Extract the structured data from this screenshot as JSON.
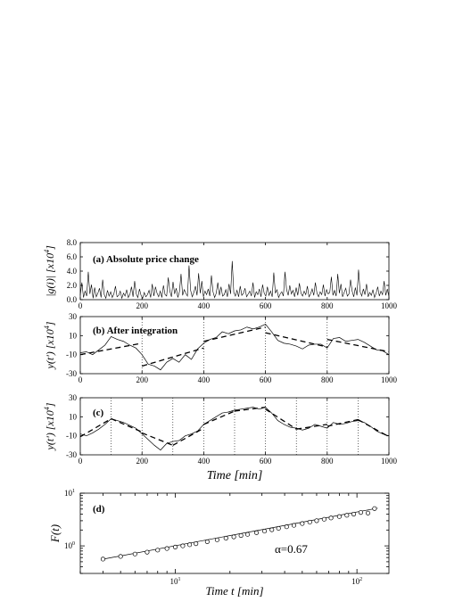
{
  "chart_data": [
    {
      "panel": "(a)",
      "type": "line",
      "title": "(a) Absolute price change",
      "ylabel_parts": [
        "|g(i)| [x10",
        "4",
        "]"
      ],
      "xlim": [
        0,
        1000
      ],
      "ylim": [
        0,
        8
      ],
      "xticks": [
        0,
        200,
        400,
        600,
        800,
        1000
      ],
      "yticks": [
        0,
        2,
        4,
        6,
        8
      ],
      "ytick_labels": [
        "0.0",
        "2.0",
        "4.0",
        "6.0",
        "8.0"
      ],
      "series": [
        {
          "values": [
            0.6,
            2.4,
            0.3,
            1.2,
            0.5,
            3.9,
            0.8,
            2.1,
            0.2,
            1.7,
            0.4,
            0.9,
            1.6,
            0.3,
            2.8,
            0.7,
            0.2,
            1.3,
            0.5,
            1.1,
            0.3,
            0.8,
            1.9,
            0.4,
            0.6,
            1.2,
            0.2,
            0.9,
            0.5,
            1.4,
            0.3,
            0.7,
            1.8,
            0.4,
            2.6,
            0.8,
            0.3,
            1.5,
            0.6,
            0.2,
            1.0,
            0.4,
            0.7,
            1.3,
            0.3,
            2.2,
            0.5,
            1.8,
            0.9,
            0.4,
            1.2,
            0.3,
            2.0,
            0.7,
            0.5,
            3.1,
            1.2,
            0.4,
            2.5,
            0.8,
            1.6,
            0.3,
            1.1,
            3.6,
            0.6,
            1.4,
            0.9,
            0.5,
            4.8,
            1.3,
            0.4,
            1.0,
            1.9,
            0.6,
            3.7,
            0.9,
            2.6,
            0.4,
            1.2,
            0.7,
            1.5,
            0.5,
            3.4,
            1.1,
            0.3,
            0.9,
            2.4,
            0.6,
            1.8,
            0.5,
            0.7,
            1.4,
            0.4,
            2.2,
            0.8,
            5.4,
            1.0,
            0.5,
            1.3,
            0.4,
            1.9,
            0.6,
            0.9,
            1.6,
            0.4,
            0.8,
            1.2,
            0.5,
            2.4,
            0.3,
            1.1,
            0.7,
            1.5,
            0.4,
            2.1,
            0.9,
            0.5,
            1.8,
            0.6,
            1.2,
            0.4,
            3.8,
            0.9,
            1.4,
            0.3,
            0.8,
            1.1,
            0.5,
            3.9,
            1.4,
            0.6,
            2.0,
            0.8,
            1.3,
            0.4,
            1.7,
            0.6,
            2.3,
            0.9,
            0.5,
            1.2,
            0.7,
            1.9,
            0.4,
            0.8,
            1.5,
            0.6,
            2.4,
            0.9,
            0.4,
            1.1,
            0.7,
            2.1,
            0.5,
            1.4,
            0.8,
            1.0,
            3.2,
            0.6,
            1.3,
            0.5,
            3.6,
            0.9,
            2.2,
            0.4,
            1.0,
            1.6,
            0.5,
            0.8,
            2.8,
            1.2,
            0.4,
            1.7,
            0.6,
            4.2,
            1.1,
            0.5,
            1.5,
            0.7,
            2.2,
            0.4,
            1.0,
            0.6,
            1.4,
            0.3,
            0.9,
            1.8,
            0.5,
            1.2,
            0.7,
            2.6,
            0.6,
            1.5,
            0.4
          ],
          "color": "#000000"
        }
      ]
    },
    {
      "panel": "(b)",
      "type": "line",
      "title": "(b) After integration",
      "ylabel_parts": [
        "y(t') [x10",
        "4",
        "]"
      ],
      "xlim": [
        0,
        1000
      ],
      "ylim": [
        -30,
        30
      ],
      "xticks": [
        0,
        200,
        400,
        600,
        800,
        1000
      ],
      "yticks": [
        -30,
        -10,
        10,
        30
      ],
      "vlines": [
        200,
        400,
        600,
        800
      ],
      "series": [
        {
          "name": "integrated",
          "x": [
            0,
            20,
            40,
            60,
            80,
            100,
            120,
            140,
            160,
            180,
            200,
            220,
            240,
            260,
            280,
            300,
            320,
            340,
            360,
            380,
            400,
            420,
            440,
            460,
            480,
            500,
            520,
            540,
            560,
            580,
            600,
            620,
            640,
            660,
            680,
            700,
            720,
            740,
            760,
            780,
            800,
            820,
            840,
            860,
            880,
            900,
            920,
            940,
            960,
            980,
            1000
          ],
          "values": [
            -8,
            -7,
            -10,
            -5,
            0,
            9,
            6,
            4,
            0,
            -3,
            -10,
            -20,
            -22,
            -26,
            -18,
            -14,
            -18,
            -10,
            -15,
            -4,
            2,
            6,
            8,
            14,
            12,
            15,
            16,
            19,
            17,
            19,
            22,
            14,
            5,
            2,
            1,
            -1,
            -4,
            0,
            1,
            1,
            -3,
            7,
            8,
            4,
            5,
            6,
            3,
            -1,
            -5,
            -6,
            -10
          ]
        },
        {
          "name": "fit",
          "segments": [
            {
              "x": [
                0,
                200
              ],
              "y": [
                -10,
                2
              ]
            },
            {
              "x": [
                200,
                400
              ],
              "y": [
                -22,
                -3
              ]
            },
            {
              "x": [
                400,
                600
              ],
              "y": [
                4,
                19
              ]
            },
            {
              "x": [
                600,
                800
              ],
              "y": [
                13,
                -2
              ]
            },
            {
              "x": [
                800,
                1000
              ],
              "y": [
                6,
                -7
              ]
            }
          ]
        }
      ]
    },
    {
      "panel": "(c)",
      "type": "line",
      "title": "(c)",
      "xlabel": "Time [min]",
      "ylabel_parts": [
        "y(t') [x10",
        "4",
        "]"
      ],
      "xlim": [
        0,
        1000
      ],
      "ylim": [
        -30,
        30
      ],
      "xticks": [
        0,
        200,
        400,
        600,
        800,
        1000
      ],
      "yticks": [
        -30,
        -10,
        10,
        30
      ],
      "vlines": [
        100,
        200,
        300,
        400,
        500,
        600,
        700,
        800,
        900
      ],
      "series": [
        {
          "name": "integrated",
          "x": [
            0,
            20,
            40,
            60,
            80,
            100,
            120,
            140,
            160,
            180,
            200,
            220,
            240,
            260,
            280,
            300,
            320,
            340,
            360,
            380,
            400,
            420,
            440,
            460,
            480,
            500,
            520,
            540,
            560,
            580,
            600,
            620,
            640,
            660,
            680,
            700,
            720,
            740,
            760,
            780,
            800,
            820,
            840,
            860,
            880,
            900,
            920,
            940,
            960,
            980,
            1000
          ],
          "values": [
            -8,
            -10,
            -7,
            -3,
            2,
            8,
            6,
            4,
            1,
            -2,
            -8,
            -14,
            -20,
            -25,
            -18,
            -16,
            -15,
            -10,
            -8,
            -5,
            2,
            6,
            10,
            14,
            15,
            17,
            18,
            19,
            20,
            18,
            20,
            14,
            6,
            2,
            -1,
            -2,
            -4,
            -2,
            2,
            0,
            -2,
            4,
            2,
            3,
            5,
            6,
            4,
            0,
            -5,
            -8,
            -10
          ]
        },
        {
          "name": "fit",
          "segments": [
            {
              "x": [
                0,
                100
              ],
              "y": [
                -11,
                8
              ]
            },
            {
              "x": [
                100,
                200
              ],
              "y": [
                8,
                -6
              ]
            },
            {
              "x": [
                200,
                300
              ],
              "y": [
                -7,
                -20
              ]
            },
            {
              "x": [
                300,
                400
              ],
              "y": [
                -20,
                -2
              ]
            },
            {
              "x": [
                400,
                500
              ],
              "y": [
                2,
                16
              ]
            },
            {
              "x": [
                500,
                600
              ],
              "y": [
                16,
                20
              ]
            },
            {
              "x": [
                600,
                700
              ],
              "y": [
                18,
                -3
              ]
            },
            {
              "x": [
                700,
                800
              ],
              "y": [
                -3,
                2
              ]
            },
            {
              "x": [
                800,
                900
              ],
              "y": [
                0,
                7
              ]
            },
            {
              "x": [
                900,
                1000
              ],
              "y": [
                7,
                -11
              ]
            }
          ]
        }
      ]
    },
    {
      "panel": "(d)",
      "type": "scatter",
      "title": "(d)",
      "xlabel": "Time t [min]",
      "ylabel": "F(t)",
      "xscale": "log",
      "yscale": "log",
      "xlim": [
        3,
        150
      ],
      "ylim": [
        0.3,
        10
      ],
      "xtick_labels": [
        {
          "value": 10,
          "base": "10",
          "exp": "1"
        },
        {
          "value": 100,
          "base": "10",
          "exp": "2"
        }
      ],
      "ytick_labels": [
        {
          "value": 1,
          "base": "10",
          "exp": "0"
        },
        {
          "value": 10,
          "base": "10",
          "exp": "1"
        }
      ],
      "annotation": "α=0.67",
      "series": [
        {
          "name": "data",
          "x": [
            4,
            5,
            6,
            7,
            8,
            9,
            10,
            11,
            12,
            13,
            15,
            17,
            19,
            21,
            23,
            25,
            28,
            31,
            34,
            37,
            41,
            45,
            50,
            55,
            60,
            66,
            72,
            80,
            88,
            96,
            105,
            115,
            125
          ],
          "values": [
            0.56,
            0.63,
            0.7,
            0.76,
            0.83,
            0.89,
            0.95,
            1.0,
            1.05,
            1.1,
            1.2,
            1.3,
            1.4,
            1.48,
            1.57,
            1.65,
            1.78,
            1.9,
            2.02,
            2.15,
            2.3,
            2.45,
            2.65,
            2.82,
            3.0,
            3.2,
            3.38,
            3.6,
            3.8,
            4.0,
            4.3,
            4.2,
            5.1
          ]
        },
        {
          "name": "fit",
          "x": [
            4,
            130
          ],
          "values": [
            0.56,
            5.2
          ]
        }
      ]
    }
  ]
}
